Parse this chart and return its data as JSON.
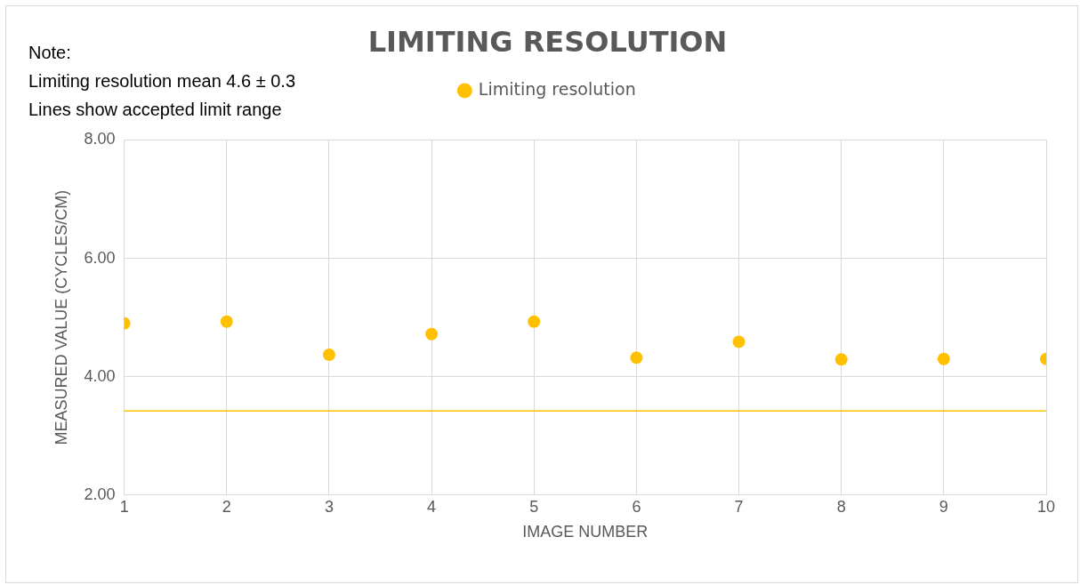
{
  "chart_data": {
    "type": "scatter",
    "title": "LIMITING RESOLUTION",
    "xlabel": "IMAGE NUMBER",
    "ylabel": "MEASURED VALUE (CYCLES/CM)",
    "annotations": [
      "Note:",
      "Limiting resolution mean 4.6 ± 0.3",
      "Lines show accepted limit range"
    ],
    "x": [
      1,
      2,
      3,
      4,
      5,
      6,
      7,
      8,
      9,
      10
    ],
    "series": [
      {
        "name": "Limiting resolution",
        "color": "#ffc000",
        "values": [
          4.9,
          4.93,
          4.37,
          4.72,
          4.93,
          4.32,
          4.59,
          4.29,
          4.3,
          4.3
        ]
      }
    ],
    "xlim": [
      1,
      10
    ],
    "xticks": [
      1,
      2,
      3,
      4,
      5,
      6,
      7,
      8,
      9,
      10
    ],
    "ylim": [
      2,
      8
    ],
    "yticks": [
      {
        "value": 2,
        "label": "2.00"
      },
      {
        "value": 4,
        "label": "4.00"
      },
      {
        "value": 6,
        "label": "6.00"
      },
      {
        "value": 8,
        "label": "8.00"
      }
    ],
    "ref_lines": [
      {
        "axis": "y",
        "value": 3.42,
        "color": "#ffc000"
      }
    ],
    "grid": true,
    "legend": "top",
    "marker": "circle"
  }
}
